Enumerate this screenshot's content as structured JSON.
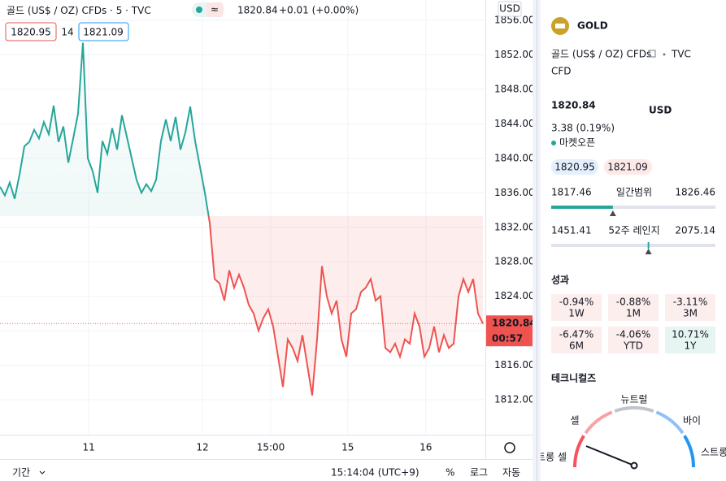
{
  "header": {
    "symbol": "골드 (US$ / OZ) CFDs",
    "interval": "5",
    "exchange": "TVC",
    "price": "1820.84",
    "change": "+0.01 (+0.00%)",
    "bid": "1820.95",
    "spread": "14",
    "ask": "1821.09"
  },
  "chart_data": {
    "type": "line",
    "up_color": "#26a69a",
    "down_color": "#ef5350",
    "baseline": 1833.3,
    "values": [
      1836.7,
      1835.7,
      1837.2,
      1835.3,
      1838.1,
      1841.4,
      1841.9,
      1843.3,
      1842.3,
      1844.2,
      1842.8,
      1846.1,
      1841.9,
      1843.7,
      1839.5,
      1842.3,
      1845.2,
      1853.4,
      1840.0,
      1838.5,
      1836.0,
      1842.0,
      1840.5,
      1843.5,
      1841.0,
      1845.0,
      1842.5,
      1840.0,
      1837.5,
      1836.0,
      1837.0,
      1836.2,
      1837.5,
      1842.0,
      1844.5,
      1842.0,
      1844.8,
      1841.0,
      1843.0,
      1846.0,
      1842.0,
      1839.0,
      1836.0,
      1832.5,
      1826.0,
      1825.5,
      1823.5,
      1827.0,
      1825.0,
      1826.5,
      1825.0,
      1823.0,
      1822.0,
      1820.0,
      1821.5,
      1822.5,
      1820.5,
      1817.0,
      1813.5,
      1819.0,
      1818.0,
      1816.5,
      1819.5,
      1816.0,
      1812.5,
      1819.0,
      1827.5,
      1824.0,
      1822.0,
      1823.5,
      1819.0,
      1817.0,
      1822.0,
      1822.5,
      1824.5,
      1825.0,
      1826.0,
      1823.5,
      1824.0,
      1818.0,
      1817.5,
      1818.5,
      1817.0,
      1819.0,
      1818.5,
      1822.0,
      1820.5,
      1817.0,
      1818.0,
      1820.5,
      1817.5,
      1819.5,
      1818.0,
      1818.5,
      1824.0,
      1826.0,
      1824.5,
      1826.0,
      1822.0,
      1820.84
    ],
    "xlim": [
      0,
      99.5
    ],
    "xticks": [
      {
        "value": 18.2,
        "label": "11"
      },
      {
        "value": 41.5,
        "label": "12"
      },
      {
        "value": 55.5,
        "label": "15:00"
      },
      {
        "value": 71.3,
        "label": "15"
      },
      {
        "value": 87.3,
        "label": "16"
      }
    ],
    "ylim": [
      1807.95,
      1858.36
    ],
    "yticks": [
      {
        "value": 1812,
        "label": "1812.00"
      },
      {
        "value": 1816,
        "label": "1816.00"
      },
      {
        "value": 1820,
        "label": "1820.00"
      },
      {
        "value": 1824,
        "label": "1824.00"
      },
      {
        "value": 1828,
        "label": "1828.00"
      },
      {
        "value": 1832,
        "label": "1832.00"
      },
      {
        "value": 1836,
        "label": "1836.00"
      },
      {
        "value": 1840,
        "label": "1840.00"
      },
      {
        "value": 1844,
        "label": "1844.00"
      },
      {
        "value": 1848,
        "label": "1848.00"
      },
      {
        "value": 1852,
        "label": "1852.00"
      },
      {
        "value": 1856,
        "label": "1856.00"
      }
    ],
    "grid": true,
    "axis_unit": "USD",
    "last_price": 1820.84,
    "countdown": "00:57"
  },
  "bottom_bar": {
    "range": "기간",
    "time": "15:14:04 (UTC+9)",
    "percent": "%",
    "log": "로그",
    "auto": "자동"
  },
  "panel": {
    "name": "GOLD",
    "description": "골드 (US$ / OZ) CFDs",
    "exchange": "TVC",
    "kind": "CFD",
    "price": 1820.84,
    "currency": "USD",
    "change": "3.38 (0.19%)",
    "status": "마켓오픈",
    "bid": "1820.95",
    "ask": "1821.09",
    "day_low": 1817.46,
    "day_label": "일간범위",
    "day_high": 1826.46,
    "year_low": 1451.41,
    "year_label": "52주 레인지",
    "year_high": 2075.14,
    "performance_title": "성과",
    "performance": [
      {
        "value": "-0.94%",
        "period": "1W"
      },
      {
        "value": "-0.88%",
        "period": "1M"
      },
      {
        "value": "-3.11%",
        "period": "3M"
      },
      {
        "value": "-6.47%",
        "period": "6M"
      },
      {
        "value": "-4.06%",
        "period": "YTD"
      },
      {
        "value": "10.71%",
        "period": "1Y"
      }
    ],
    "technicals_title": "테크니컬즈",
    "gauge": {
      "strong_sell": "스트롱 셀",
      "sell": "셀",
      "neutral": "뉴트럴",
      "buy": "바이",
      "strong_buy": "스트롱 바이"
    }
  }
}
